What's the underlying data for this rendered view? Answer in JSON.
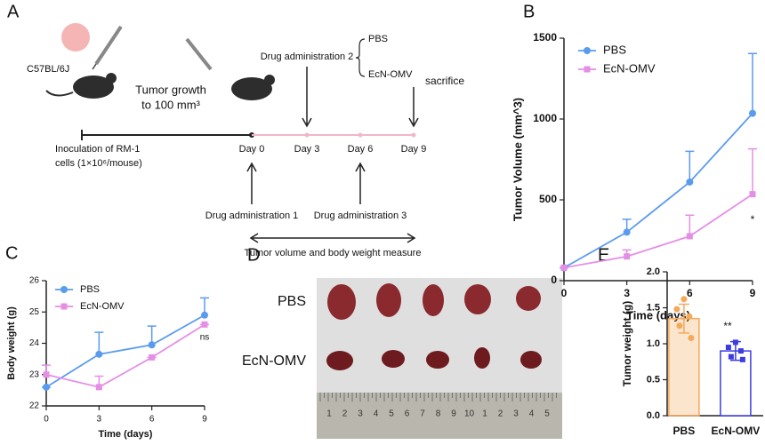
{
  "panel_labels": [
    "A",
    "B",
    "C",
    "D",
    "E"
  ],
  "schematic": {
    "strain": "C57BL/6J",
    "growth": [
      "Tumor growth",
      "to 100 mm³"
    ],
    "inoculation": [
      "Inoculation of RM-1",
      "cells (1×10⁶/mouse)"
    ],
    "days": [
      "Day 0",
      "Day 3",
      "Day 6",
      "Day 9"
    ],
    "administration": [
      "Drug administration 1",
      "Drug administration 2",
      "Drug administration 3"
    ],
    "groups": [
      "PBS",
      "EcN-OMV"
    ],
    "endpoint": "sacrifice",
    "measure": "Tumor volume and body weight measure"
  },
  "chart_data": [
    {
      "type": "line",
      "x": [
        0,
        3,
        6,
        9
      ],
      "xlim": [
        0,
        9
      ],
      "xticks": [
        0,
        3,
        6,
        9
      ],
      "ylim": [
        0,
        1500
      ],
      "yticks": [
        0,
        500,
        1000,
        1500
      ],
      "xlabel": "Time (days)",
      "ylabel": "Tumor Volume (mm^3)",
      "series": [
        {
          "name": "PBS",
          "color": "#5b9bef",
          "values": [
            80,
            300,
            610,
            1035
          ],
          "errors": [
            0,
            80,
            190,
            370
          ]
        },
        {
          "name": "EcN-OMV",
          "color": "#e58ee5",
          "values": [
            80,
            150,
            275,
            535
          ],
          "errors": [
            0,
            40,
            130,
            280
          ]
        }
      ],
      "annotation": "*"
    },
    {
      "type": "line",
      "x": [
        0,
        3,
        6,
        9
      ],
      "xlim": [
        0,
        9
      ],
      "xticks": [
        0,
        3,
        6,
        9
      ],
      "ylim": [
        22,
        26
      ],
      "yticks": [
        22,
        23,
        24,
        25,
        26
      ],
      "xlabel": "Time (days)",
      "ylabel": "Body weight (g)",
      "series": [
        {
          "name": "PBS",
          "color": "#5b9bef",
          "values": [
            22.6,
            23.65,
            23.95,
            24.9
          ],
          "errors": [
            0,
            0.7,
            0.6,
            0.55
          ]
        },
        {
          "name": "EcN-OMV",
          "color": "#e58ee5",
          "values": [
            23.0,
            22.6,
            23.55,
            24.6
          ],
          "errors": [
            0.3,
            0.35,
            0,
            0
          ]
        }
      ],
      "annotation": "ns"
    },
    {
      "type": "bar",
      "categories": [
        "PBS",
        "EcN-OMV"
      ],
      "values": [
        1.35,
        0.9
      ],
      "errors": [
        0.2,
        0.13
      ],
      "colors": [
        "#f5a85a",
        "#3c3ce0"
      ],
      "points": [
        [
          1.62,
          1.48,
          1.38,
          1.25,
          1.08
        ],
        [
          1.02,
          0.95,
          0.9,
          0.82,
          0.78
        ]
      ],
      "ylim": [
        0,
        2
      ],
      "yticks": [
        {
          "value": 0,
          "label": "0.0"
        },
        {
          "value": 0.5,
          "label": "0.5"
        },
        {
          "value": 1,
          "label": "1.0"
        },
        {
          "value": 1.5,
          "label": "1.5"
        },
        {
          "value": 2,
          "label": "2.0"
        }
      ],
      "ylabel": "Tumor weight (g)",
      "annotation": "**"
    }
  ],
  "photo": {
    "rows": [
      "PBS",
      "EcN-OMV"
    ],
    "ruler": [
      1,
      2,
      3,
      4,
      5,
      6,
      7,
      8,
      9,
      10,
      1,
      2,
      3,
      4,
      5
    ]
  }
}
